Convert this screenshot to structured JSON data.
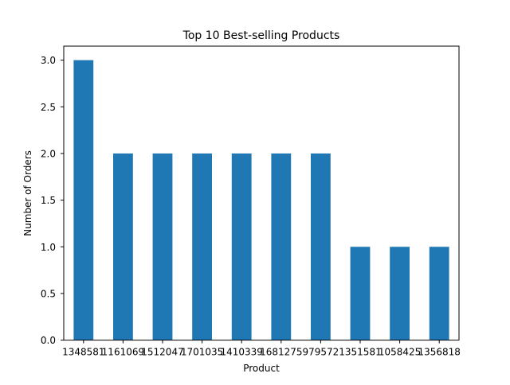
{
  "chart_data": {
    "type": "bar",
    "title": "Top 10 Best-selling Products",
    "xlabel": "Product",
    "ylabel": "Number of Orders",
    "categories": [
      "1348581",
      "1161069",
      "1512047",
      "1701035",
      "1410339",
      "1681275",
      "979572",
      "1351581",
      "1058425",
      "1356818"
    ],
    "values": [
      3,
      2,
      2,
      2,
      2,
      2,
      2,
      1,
      1,
      1
    ],
    "ylim": [
      0,
      3.15
    ],
    "yticks": [
      "0.0",
      "0.5",
      "1.0",
      "1.5",
      "2.0",
      "2.5",
      "3.0"
    ],
    "bar_color": "#1f77b4",
    "grid": false,
    "legend": "none"
  }
}
